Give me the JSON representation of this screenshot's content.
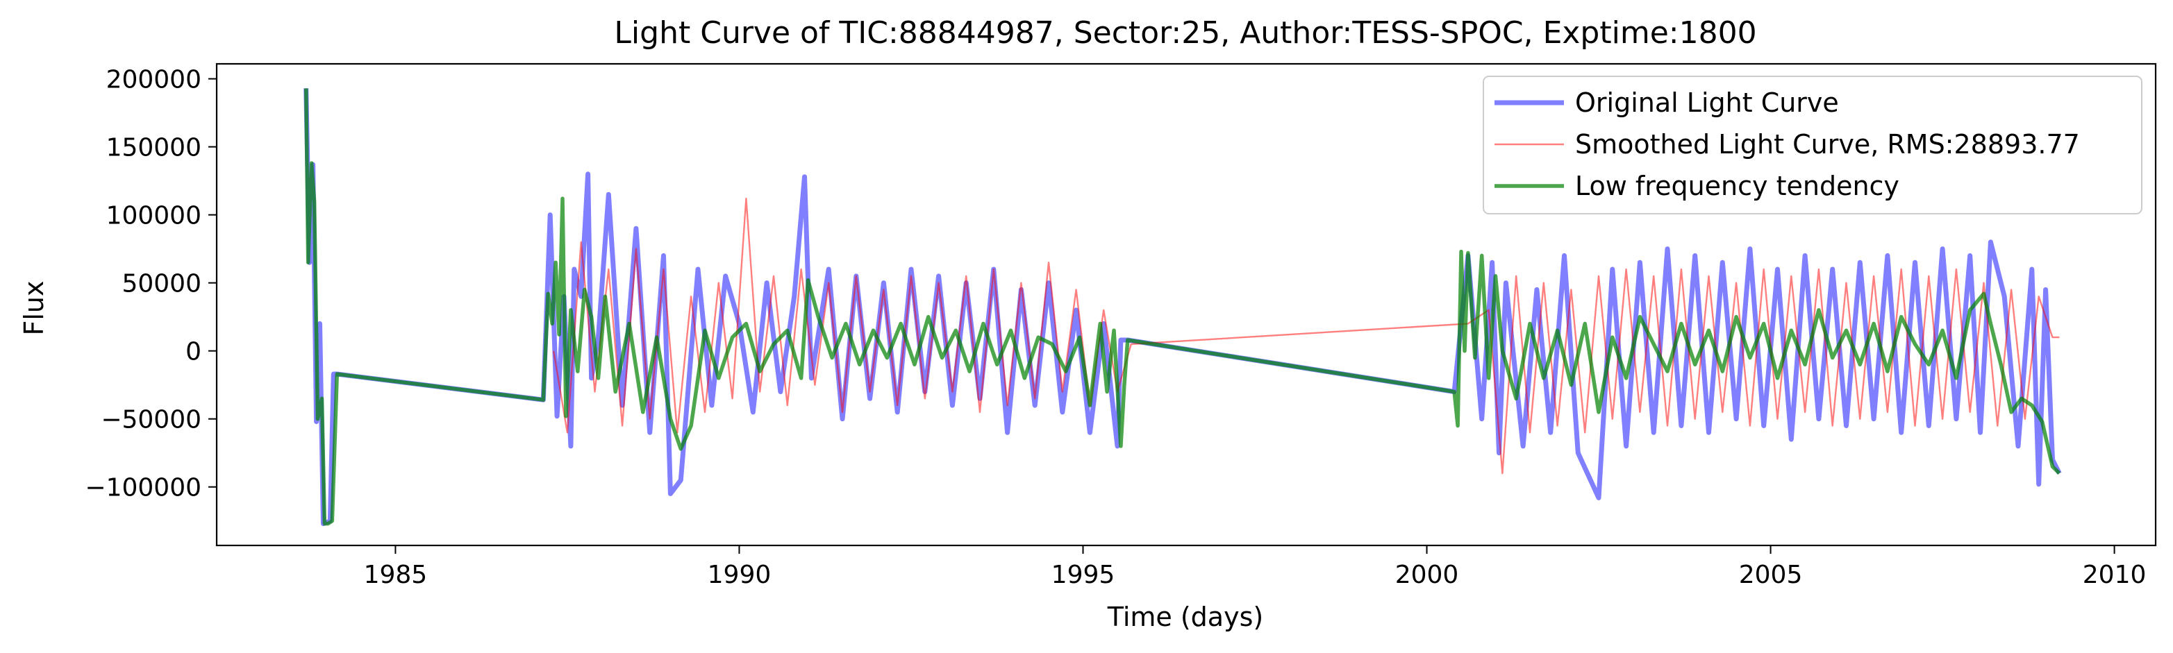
{
  "chart_data": {
    "type": "line",
    "title": "Light Curve of TIC:88844987, Sector:25, Author:TESS-SPOC, Exptime:1800",
    "xlabel": "Time (days)",
    "ylabel": "Flux",
    "xlim": [
      1982.4,
      2010.6
    ],
    "ylim": [
      -143000,
      211000
    ],
    "x_ticks": [
      1985,
      1990,
      1995,
      2000,
      2005,
      2010
    ],
    "x_tick_labels": [
      "1985",
      "1990",
      "1995",
      "2000",
      "2005",
      "2010"
    ],
    "y_ticks": [
      -100000,
      -50000,
      0,
      50000,
      100000,
      150000,
      200000
    ],
    "y_tick_labels": [
      "−100000",
      "−50000",
      "0",
      "50000",
      "100000",
      "150000",
      "200000"
    ],
    "grid": false,
    "legend_position": "top-right",
    "series": [
      {
        "name": "Original Light Curve",
        "color": "#0000ff",
        "opacity": 0.5,
        "style": "thick",
        "x": [
          1983.7,
          1983.75,
          1983.8,
          1983.85,
          1983.9,
          1983.95,
          1984.05,
          1984.1,
          1984.15,
          1987.15,
          1987.25,
          1987.35,
          1987.45,
          1987.55,
          1987.6,
          1987.7,
          1987.8,
          1987.85,
          1987.95,
          1988.1,
          1988.3,
          1988.5,
          1988.7,
          1988.9,
          1989.0,
          1989.15,
          1989.4,
          1989.6,
          1989.8,
          1990.0,
          1990.2,
          1990.4,
          1990.6,
          1990.8,
          1990.95,
          1991.05,
          1991.3,
          1991.5,
          1991.7,
          1991.9,
          1992.1,
          1992.3,
          1992.5,
          1992.7,
          1992.9,
          1993.1,
          1993.3,
          1993.5,
          1993.7,
          1993.9,
          1994.1,
          1994.3,
          1994.5,
          1994.7,
          1994.9,
          1995.1,
          1995.3,
          1995.5,
          1995.55,
          1995.65,
          2000.4,
          2000.6,
          2000.8,
          2000.95,
          2001.05,
          2001.15,
          2001.4,
          2001.6,
          2001.8,
          2002.0,
          2002.2,
          2002.5,
          2002.7,
          2002.9,
          2003.1,
          2003.3,
          2003.5,
          2003.7,
          2003.9,
          2004.1,
          2004.3,
          2004.5,
          2004.7,
          2004.9,
          2005.1,
          2005.3,
          2005.5,
          2005.7,
          2005.9,
          2006.1,
          2006.3,
          2006.5,
          2006.7,
          2006.9,
          2007.1,
          2007.3,
          2007.5,
          2007.7,
          2007.9,
          2008.05,
          2008.2,
          2008.4,
          2008.6,
          2008.8,
          2008.9,
          2009.0,
          2009.1,
          2009.2
        ],
        "y": [
          193000,
          65000,
          137000,
          -52000,
          20000,
          -127000,
          -125000,
          -17000,
          -17000,
          -36000,
          100000,
          -48000,
          40000,
          -70000,
          60000,
          40000,
          130000,
          -20000,
          10000,
          115000,
          -40000,
          90000,
          -60000,
          70000,
          -105000,
          -95000,
          60000,
          -40000,
          55000,
          20000,
          -45000,
          50000,
          -30000,
          40000,
          128000,
          -20000,
          60000,
          -50000,
          55000,
          -35000,
          50000,
          -45000,
          60000,
          -30000,
          55000,
          -40000,
          50000,
          -35000,
          60000,
          -60000,
          45000,
          -40000,
          50000,
          -45000,
          30000,
          -60000,
          20000,
          -70000,
          8000,
          8000,
          -30000,
          70000,
          -50000,
          65000,
          -75000,
          50000,
          -70000,
          45000,
          -60000,
          70000,
          -75000,
          -108000,
          60000,
          -70000,
          65000,
          -60000,
          75000,
          -55000,
          70000,
          -60000,
          65000,
          -50000,
          75000,
          -55000,
          60000,
          -65000,
          70000,
          -50000,
          60000,
          -55000,
          65000,
          -50000,
          70000,
          -60000,
          65000,
          -55000,
          75000,
          -50000,
          70000,
          -60000,
          80000,
          40000,
          -70000,
          60000,
          -98000,
          45000,
          -80000,
          -90000
        ]
      },
      {
        "name": "Smoothed Light Curve, RMS:28893.77",
        "color": "#ff0000",
        "opacity": 0.5,
        "style": "thin",
        "x": [
          1987.3,
          1987.5,
          1987.7,
          1987.9,
          1988.1,
          1988.3,
          1988.5,
          1988.7,
          1988.9,
          1989.1,
          1989.3,
          1989.5,
          1989.7,
          1989.9,
          1990.1,
          1990.3,
          1990.5,
          1990.7,
          1990.9,
          1991.1,
          1991.3,
          1991.5,
          1991.7,
          1991.9,
          1992.1,
          1992.3,
          1992.5,
          1992.7,
          1992.9,
          1993.1,
          1993.3,
          1993.5,
          1993.7,
          1993.9,
          1994.1,
          1994.3,
          1994.5,
          1994.7,
          1994.9,
          1995.1,
          1995.3,
          1995.5,
          1995.7,
          2000.6,
          2000.9,
          2001.1,
          2001.3,
          2001.5,
          2001.7,
          2001.9,
          2002.1,
          2002.3,
          2002.5,
          2002.7,
          2002.9,
          2003.1,
          2003.3,
          2003.5,
          2003.7,
          2003.9,
          2004.1,
          2004.3,
          2004.5,
          2004.7,
          2004.9,
          2005.1,
          2005.3,
          2005.5,
          2005.7,
          2005.9,
          2006.1,
          2006.3,
          2006.5,
          2006.7,
          2006.9,
          2007.1,
          2007.3,
          2007.5,
          2007.7,
          2007.9,
          2008.1,
          2008.3,
          2008.5,
          2008.7,
          2008.9,
          2009.1,
          2009.2
        ],
        "y": [
          0,
          -60000,
          80000,
          -30000,
          60000,
          -55000,
          75000,
          -50000,
          60000,
          -60000,
          40000,
          -45000,
          50000,
          -35000,
          112000,
          -30000,
          55000,
          -40000,
          60000,
          -25000,
          50000,
          -45000,
          55000,
          -30000,
          45000,
          -40000,
          55000,
          -35000,
          50000,
          -30000,
          55000,
          -45000,
          60000,
          -40000,
          50000,
          -35000,
          65000,
          -30000,
          45000,
          -40000,
          30000,
          -30000,
          5000,
          20000,
          30000,
          -90000,
          55000,
          -60000,
          50000,
          -55000,
          45000,
          -60000,
          55000,
          -50000,
          60000,
          -45000,
          55000,
          -55000,
          60000,
          -50000,
          55000,
          -45000,
          50000,
          -55000,
          60000,
          -50000,
          55000,
          -45000,
          60000,
          -55000,
          50000,
          -50000,
          55000,
          -45000,
          60000,
          -55000,
          55000,
          -50000,
          60000,
          -45000,
          50000,
          -55000,
          45000,
          -50000,
          40000,
          10000,
          10000
        ]
      },
      {
        "name": "Low frequency tendency",
        "color": "#008000",
        "opacity": 0.7,
        "style": "medium",
        "x": [
          1983.7,
          1983.73,
          1983.78,
          1983.82,
          1983.87,
          1983.93,
          1983.97,
          1984.02,
          1984.08,
          1984.15,
          1987.15,
          1987.22,
          1987.28,
          1987.33,
          1987.38,
          1987.43,
          1987.48,
          1987.55,
          1987.65,
          1987.75,
          1987.85,
          1987.95,
          1988.05,
          1988.2,
          1988.4,
          1988.6,
          1988.8,
          1989.0,
          1989.15,
          1989.3,
          1989.5,
          1989.7,
          1989.9,
          1990.1,
          1990.3,
          1990.5,
          1990.7,
          1990.9,
          1991.0,
          1991.15,
          1991.35,
          1991.55,
          1991.75,
          1991.95,
          1992.15,
          1992.35,
          1992.55,
          1992.75,
          1992.95,
          1993.15,
          1993.35,
          1993.55,
          1993.75,
          1993.95,
          1994.15,
          1994.35,
          1994.55,
          1994.75,
          1994.95,
          1995.1,
          1995.25,
          1995.35,
          1995.45,
          1995.55,
          1995.6,
          1995.65,
          2000.4,
          2000.45,
          2000.5,
          2000.55,
          2000.6,
          2000.7,
          2000.8,
          2000.9,
          2001.0,
          2001.1,
          2001.3,
          2001.5,
          2001.7,
          2001.9,
          2002.1,
          2002.3,
          2002.5,
          2002.7,
          2002.9,
          2003.1,
          2003.3,
          2003.5,
          2003.7,
          2003.9,
          2004.1,
          2004.3,
          2004.5,
          2004.7,
          2004.9,
          2005.1,
          2005.3,
          2005.5,
          2005.7,
          2005.9,
          2006.1,
          2006.3,
          2006.5,
          2006.7,
          2006.9,
          2007.1,
          2007.3,
          2007.5,
          2007.7,
          2007.9,
          2008.1,
          2008.2,
          2008.35,
          2008.5,
          2008.65,
          2008.8,
          2008.95,
          2009.1,
          2009.2
        ],
        "y": [
          193000,
          65000,
          138000,
          110000,
          -50000,
          -35000,
          -127000,
          -127000,
          -125000,
          -17000,
          -36000,
          42000,
          20000,
          65000,
          12000,
          112000,
          -48000,
          30000,
          -15000,
          45000,
          25000,
          -20000,
          40000,
          -30000,
          20000,
          -45000,
          10000,
          -50000,
          -72000,
          -55000,
          15000,
          -20000,
          10000,
          20000,
          -15000,
          5000,
          15000,
          -20000,
          52000,
          25000,
          -5000,
          20000,
          -10000,
          15000,
          -5000,
          20000,
          -10000,
          25000,
          -5000,
          15000,
          -15000,
          20000,
          -10000,
          15000,
          -20000,
          10000,
          5000,
          -15000,
          10000,
          -40000,
          20000,
          -30000,
          15000,
          -70000,
          -25000,
          8000,
          -30000,
          -55000,
          73000,
          0,
          72000,
          -5000,
          70000,
          -20000,
          55000,
          0,
          -35000,
          20000,
          -20000,
          15000,
          -25000,
          20000,
          -45000,
          10000,
          -20000,
          25000,
          5000,
          -15000,
          20000,
          -10000,
          15000,
          -15000,
          25000,
          -5000,
          20000,
          -20000,
          15000,
          -10000,
          30000,
          -5000,
          15000,
          -10000,
          20000,
          -15000,
          25000,
          5000,
          -10000,
          15000,
          -20000,
          30000,
          42000,
          20000,
          -10000,
          -45000,
          -35000,
          -40000,
          -52000,
          -85000,
          -90000
        ]
      }
    ]
  }
}
